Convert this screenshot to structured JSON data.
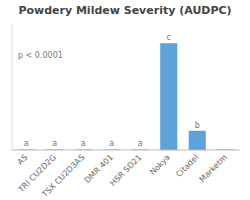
{
  "chart_data": {
    "type": "bar",
    "title": "Powdery Mildew Severity (AUDPC)",
    "categories": [
      "AS",
      "TRI CU2D2G",
      "TSX CU2D3AS",
      "DMR 401",
      "HSR SD21",
      "Nokya",
      "Citadel",
      "Marketm"
    ],
    "values": [
      0.5,
      0.5,
      0.5,
      0.5,
      0.5,
      100,
      18,
      0.5
    ],
    "bar_labels": [
      "a",
      "a",
      "a",
      "a",
      "a",
      "c",
      "b",
      null
    ],
    "annotations": [
      "p < 0.0001"
    ],
    "color": "#5ba3d9",
    "ylim": [
      0,
      118
    ],
    "grid": false,
    "tick_labels": "x"
  }
}
